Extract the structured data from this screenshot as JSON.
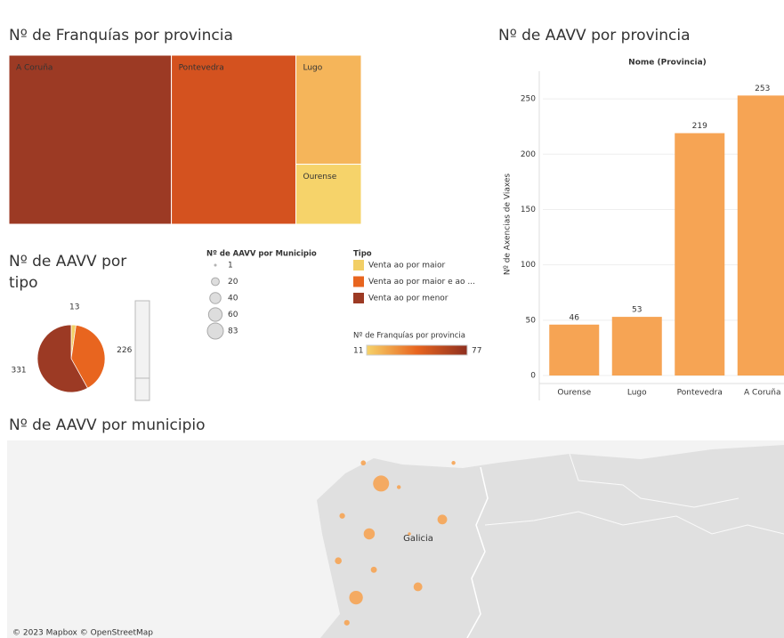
{
  "chart_data": [
    {
      "type": "treemap",
      "title": "Nº de Franquías por provincia",
      "categories": [
        "A Coruña",
        "Pontevedra",
        "Lugo",
        "Ourense"
      ],
      "values": [
        77,
        59,
        20,
        11
      ],
      "colors": [
        "#9c3a24",
        "#d4521f",
        "#f5b55a",
        "#f6d36a"
      ],
      "color_legend": {
        "title": "Nº de Franquías por provincia",
        "min": 11,
        "max": 77,
        "colors": [
          "#f6d36a",
          "#e8651f",
          "#8e2f1f"
        ]
      }
    },
    {
      "type": "pie",
      "title": "Nº de AAVV por tipo",
      "legend_title": "Tipo",
      "categories": [
        "Venta ao por maior",
        "Venta ao por maior e ao ...",
        "Venta ao por menor"
      ],
      "values": [
        13,
        226,
        331
      ],
      "colors": [
        "#f2cf66",
        "#e8651f",
        "#9c3a24"
      ]
    },
    {
      "type": "bar",
      "title": "Nº de AAVV por provincia",
      "header": "Nome (Provincia)",
      "y_label": "Nº de Axencias de Viaxes",
      "categories": [
        "Ourense",
        "Lugo",
        "Pontevedra",
        "A Coruña"
      ],
      "values": [
        46,
        53,
        219,
        253
      ],
      "color": "#f6a454",
      "ylim": [
        0,
        275
      ],
      "yticks": [
        0,
        50,
        100,
        150,
        200,
        250
      ],
      "grid": true
    },
    {
      "type": "map",
      "title": "Nº de AAVV por municipio",
      "region_label": "Galicia",
      "attribution": "© 2023 Mapbox © OpenStreetMap",
      "size_legend": {
        "title": "Nº de AAVV por Municipio",
        "values": [
          1,
          20,
          40,
          60,
          83
        ]
      },
      "color": "#f6a454",
      "xlim": [
        -14.1,
        -2.3
      ],
      "ylim": [
        41.75,
        43.95
      ],
      "lon": [
        -8.42,
        -7.49,
        -8.6,
        -8.8,
        -7.86,
        -9.01,
        -9.07,
        -8.69,
        -7.32,
        -8.15,
        -7.99,
        -8.94,
        -8.53
      ],
      "lat": [
        43.47,
        43.07,
        42.91,
        42.2,
        42.32,
        43.11,
        42.61,
        43.7,
        43.7,
        43.43,
        42.91,
        41.92,
        42.51
      ],
      "values": [
        83,
        30,
        40,
        60,
        25,
        10,
        15,
        8,
        5,
        5,
        3,
        10,
        12
      ]
    }
  ]
}
